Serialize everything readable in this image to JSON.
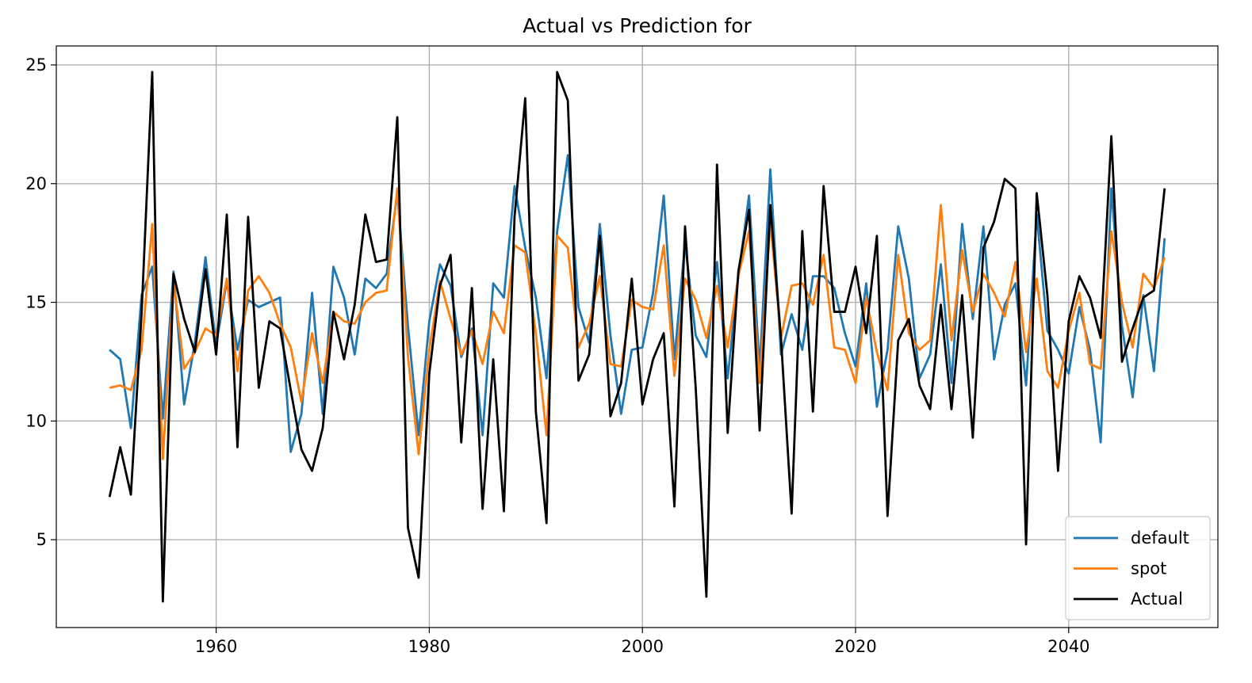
{
  "chart_data": {
    "type": "line",
    "title": "Actual vs Prediction for",
    "xlabel": "",
    "ylabel": "",
    "xlim": [
      1945,
      2054
    ],
    "ylim": [
      1.3,
      25.8
    ],
    "x_ticks": [
      1960,
      1980,
      2000,
      2020,
      2040
    ],
    "y_ticks": [
      5,
      10,
      15,
      20,
      25
    ],
    "grid": true,
    "legend_position": "lower right",
    "x_start": 1950,
    "series": [
      {
        "name": "default",
        "color": "#1f77b4",
        "values": [
          13.0,
          12.6,
          9.7,
          15.3,
          16.5,
          10.1,
          16.3,
          10.7,
          13.3,
          16.9,
          13.2,
          15.9,
          13.0,
          15.1,
          14.8,
          15.0,
          15.2,
          8.7,
          10.3,
          15.4,
          10.3,
          16.5,
          15.2,
          12.8,
          16.0,
          15.6,
          16.2,
          19.6,
          14.0,
          9.4,
          14.2,
          16.6,
          15.7,
          12.7,
          13.9,
          9.4,
          15.8,
          15.2,
          19.9,
          17.3,
          15.2,
          11.8,
          18.0,
          21.2,
          14.8,
          13.3,
          18.3,
          13.6,
          10.3,
          13.0,
          13.1,
          15.4,
          19.5,
          12.6,
          17.5,
          13.6,
          12.7,
          16.7,
          11.8,
          16.1,
          19.5,
          12.2,
          20.6,
          12.8,
          14.5,
          13.0,
          16.1,
          16.1,
          15.6,
          13.7,
          12.3,
          15.8,
          10.6,
          13.0,
          18.2,
          16.0,
          11.8,
          12.8,
          16.6,
          11.6,
          18.3,
          14.3,
          18.2,
          12.6,
          14.9,
          15.8,
          11.5,
          18.7,
          13.8,
          13.0,
          12.0,
          14.8,
          13.0,
          9.1,
          19.8,
          14.0,
          11.0,
          15.3,
          12.1,
          17.7
        ]
      },
      {
        "name": "spot",
        "color": "#ff7f0e",
        "values": [
          11.4,
          11.5,
          11.3,
          13.0,
          18.3,
          8.4,
          15.9,
          12.2,
          12.9,
          13.9,
          13.6,
          16.0,
          12.1,
          15.5,
          16.1,
          15.4,
          14.1,
          13.1,
          10.8,
          13.7,
          11.6,
          14.6,
          14.2,
          14.1,
          15.0,
          15.4,
          15.5,
          19.8,
          12.7,
          8.6,
          13.0,
          15.9,
          14.3,
          12.8,
          13.8,
          12.4,
          14.6,
          13.7,
          17.4,
          17.1,
          13.7,
          9.4,
          17.8,
          17.3,
          13.1,
          14.1,
          16.1,
          12.4,
          12.3,
          15.1,
          14.8,
          14.7,
          17.4,
          11.9,
          16.0,
          15.1,
          13.5,
          15.7,
          13.1,
          16.1,
          18.0,
          11.6,
          18.4,
          13.5,
          15.7,
          15.8,
          14.9,
          17.0,
          13.1,
          13.0,
          11.6,
          15.2,
          12.9,
          11.3,
          17.0,
          13.7,
          13.0,
          13.4,
          19.1,
          13.4,
          17.2,
          14.6,
          16.2,
          15.4,
          14.4,
          16.7,
          12.9,
          16.0,
          12.1,
          11.4,
          13.8,
          15.4,
          12.4,
          12.2,
          18.0,
          15.0,
          13.1,
          16.2,
          15.6,
          16.9
        ]
      },
      {
        "name": "Actual",
        "color": "#000000",
        "values": [
          6.8,
          8.9,
          6.9,
          14.5,
          24.7,
          2.4,
          16.2,
          14.3,
          12.9,
          16.4,
          12.8,
          18.7,
          8.9,
          18.6,
          11.4,
          14.2,
          13.9,
          11.3,
          8.8,
          7.9,
          9.7,
          14.6,
          12.6,
          14.9,
          18.7,
          16.7,
          16.8,
          22.8,
          5.5,
          3.4,
          12.0,
          15.7,
          17.0,
          9.1,
          15.6,
          6.3,
          12.6,
          6.2,
          18.6,
          23.6,
          10.4,
          5.7,
          24.7,
          23.5,
          11.7,
          12.8,
          17.8,
          10.2,
          11.6,
          16.0,
          10.7,
          12.6,
          13.7,
          6.4,
          18.2,
          11.4,
          2.6,
          20.8,
          9.5,
          16.3,
          18.9,
          9.6,
          19.1,
          13.5,
          6.1,
          18.0,
          10.4,
          19.9,
          14.6,
          14.6,
          16.5,
          13.7,
          17.8,
          6.0,
          13.4,
          14.3,
          11.5,
          10.5,
          14.9,
          10.5,
          15.3,
          9.3,
          17.3,
          18.4,
          20.2,
          19.8,
          4.8,
          19.6,
          15.3,
          7.9,
          14.2,
          16.1,
          15.2,
          13.5,
          22.0,
          12.5,
          13.9,
          15.2,
          15.5,
          19.8
        ]
      }
    ]
  }
}
